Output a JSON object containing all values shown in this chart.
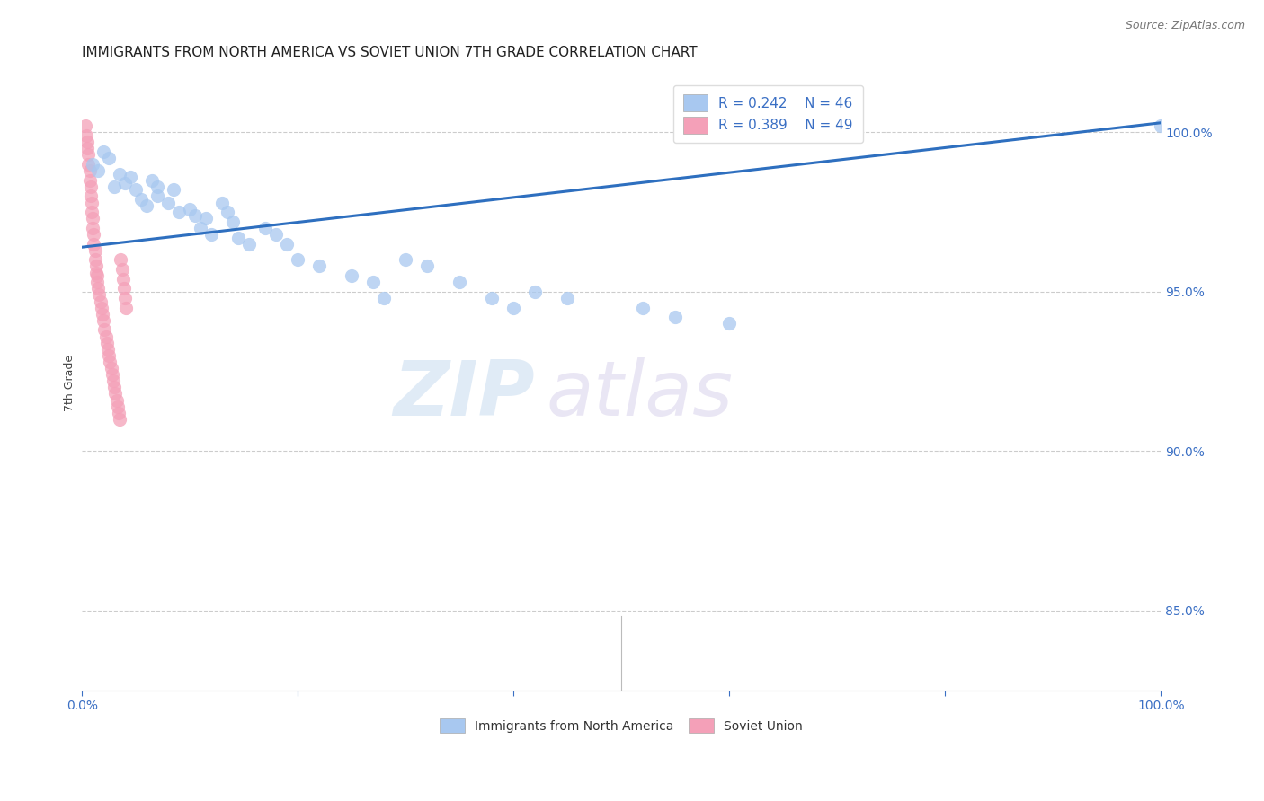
{
  "title": "IMMIGRANTS FROM NORTH AMERICA VS SOVIET UNION 7TH GRADE CORRELATION CHART",
  "source": "Source: ZipAtlas.com",
  "ylabel": "7th Grade",
  "watermark_zip": "ZIP",
  "watermark_atlas": "atlas",
  "xlim": [
    0.0,
    1.0
  ],
  "ylim": [
    0.825,
    1.018
  ],
  "yticks": [
    0.85,
    0.9,
    0.95,
    1.0
  ],
  "ytick_labels": [
    "85.0%",
    "90.0%",
    "95.0%",
    "100.0%"
  ],
  "xtick_positions": [
    0.0,
    0.2,
    0.4,
    0.6,
    0.8,
    1.0
  ],
  "xtick_labels": [
    "0.0%",
    "",
    "",
    "",
    "",
    "100.0%"
  ],
  "blue_color": "#A8C8F0",
  "pink_color": "#F4A0B8",
  "trend_color": "#2E6FBF",
  "legend_blue_label": "Immigrants from North America",
  "legend_pink_label": "Soviet Union",
  "R_blue": 0.242,
  "N_blue": 46,
  "R_pink": 0.389,
  "N_pink": 49,
  "blue_x": [
    0.01,
    0.015,
    0.02,
    0.025,
    0.03,
    0.035,
    0.04,
    0.045,
    0.05,
    0.055,
    0.06,
    0.065,
    0.07,
    0.07,
    0.08,
    0.085,
    0.09,
    0.1,
    0.105,
    0.11,
    0.115,
    0.12,
    0.13,
    0.135,
    0.14,
    0.145,
    0.155,
    0.17,
    0.18,
    0.19,
    0.2,
    0.22,
    0.25,
    0.27,
    0.28,
    0.3,
    0.32,
    0.35,
    0.38,
    0.4,
    0.42,
    0.45,
    0.52,
    0.55,
    0.6,
    1.0
  ],
  "blue_y": [
    0.99,
    0.988,
    0.994,
    0.992,
    0.983,
    0.987,
    0.984,
    0.986,
    0.982,
    0.979,
    0.977,
    0.985,
    0.98,
    0.983,
    0.978,
    0.982,
    0.975,
    0.976,
    0.974,
    0.97,
    0.973,
    0.968,
    0.978,
    0.975,
    0.972,
    0.967,
    0.965,
    0.97,
    0.968,
    0.965,
    0.96,
    0.958,
    0.955,
    0.953,
    0.948,
    0.96,
    0.958,
    0.953,
    0.948,
    0.945,
    0.95,
    0.948,
    0.945,
    0.942,
    0.94,
    1.002
  ],
  "pink_x": [
    0.003,
    0.004,
    0.005,
    0.005,
    0.006,
    0.006,
    0.007,
    0.007,
    0.008,
    0.008,
    0.009,
    0.009,
    0.01,
    0.01,
    0.011,
    0.011,
    0.012,
    0.012,
    0.013,
    0.013,
    0.014,
    0.014,
    0.015,
    0.016,
    0.017,
    0.018,
    0.019,
    0.02,
    0.021,
    0.022,
    0.023,
    0.024,
    0.025,
    0.026,
    0.027,
    0.028,
    0.029,
    0.03,
    0.031,
    0.032,
    0.033,
    0.034,
    0.035,
    0.036,
    0.037,
    0.038,
    0.039,
    0.04,
    0.041
  ],
  "pink_y": [
    1.002,
    0.999,
    0.997,
    0.995,
    0.993,
    0.99,
    0.988,
    0.985,
    0.983,
    0.98,
    0.978,
    0.975,
    0.973,
    0.97,
    0.968,
    0.965,
    0.963,
    0.96,
    0.958,
    0.956,
    0.955,
    0.953,
    0.951,
    0.949,
    0.947,
    0.945,
    0.943,
    0.941,
    0.938,
    0.936,
    0.934,
    0.932,
    0.93,
    0.928,
    0.926,
    0.924,
    0.922,
    0.92,
    0.918,
    0.916,
    0.914,
    0.912,
    0.91,
    0.96,
    0.957,
    0.954,
    0.951,
    0.948,
    0.945
  ],
  "trend_x_start": 0.0,
  "trend_x_end": 1.0,
  "trend_y_start": 0.964,
  "trend_y_end": 1.003,
  "background_color": "#FFFFFF",
  "grid_color": "#CCCCCC",
  "right_axis_color": "#3A6FC4",
  "title_fontsize": 11,
  "source_fontsize": 9,
  "legend_fontsize": 11,
  "ylabel_fontsize": 9,
  "marker_size": 120
}
